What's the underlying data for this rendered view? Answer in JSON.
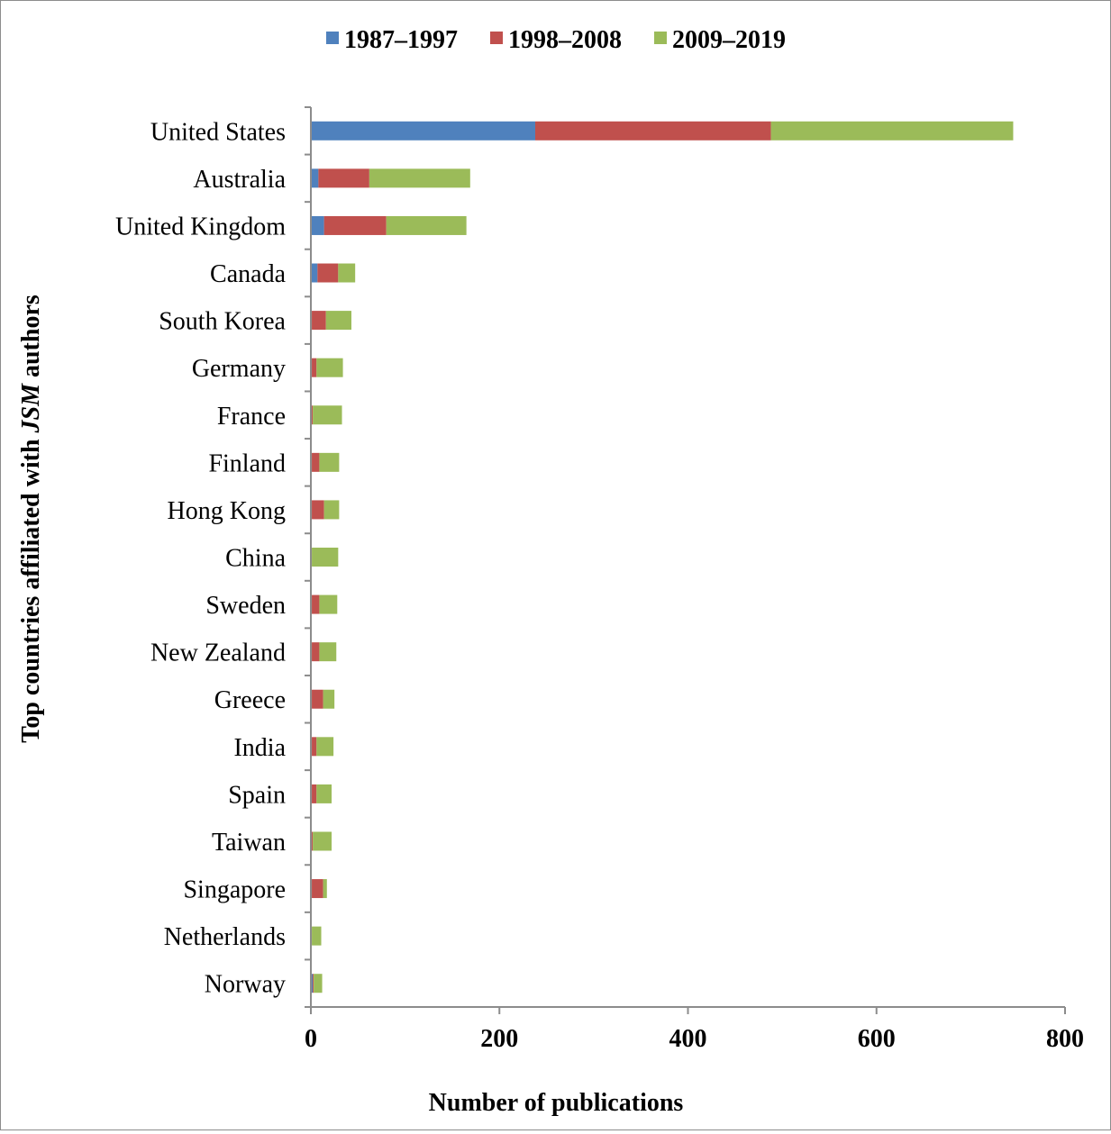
{
  "chart_data": {
    "type": "bar",
    "orientation": "horizontal",
    "stacked": true,
    "xlabel": "Number of publications",
    "ylabel_prefix": "Top countries affiliated with ",
    "ylabel_italic": "JSM",
    "ylabel_suffix": " authors",
    "xlim": [
      0,
      800
    ],
    "xticks": [
      0,
      200,
      400,
      600,
      800
    ],
    "legend_position": "top",
    "grid": false,
    "categories": [
      "United States",
      "Australia",
      "United Kingdom",
      "Canada",
      "South Korea",
      "Germany",
      "France",
      "Finland",
      "Hong Kong",
      "China",
      "Sweden",
      "New Zealand",
      "Greece",
      "India",
      "Spain",
      "Taiwan",
      "Singapore",
      "Netherlands",
      "Norway"
    ],
    "series": [
      {
        "name": "1987–1997",
        "color": "#4f81bd",
        "values": [
          238,
          8,
          14,
          7,
          1,
          1,
          1,
          1,
          1,
          0,
          1,
          1,
          1,
          1,
          1,
          1,
          1,
          0,
          2
        ]
      },
      {
        "name": "1998–2008",
        "color": "#c0504d",
        "values": [
          250,
          54,
          66,
          22,
          15,
          5,
          1,
          8,
          13,
          1,
          8,
          8,
          12,
          5,
          5,
          1,
          12,
          1,
          1
        ]
      },
      {
        "name": "2009–2019",
        "color": "#9bbb59",
        "values": [
          257,
          107,
          85,
          18,
          27,
          28,
          31,
          21,
          16,
          28,
          19,
          18,
          12,
          18,
          16,
          20,
          4,
          10,
          9
        ]
      }
    ]
  }
}
